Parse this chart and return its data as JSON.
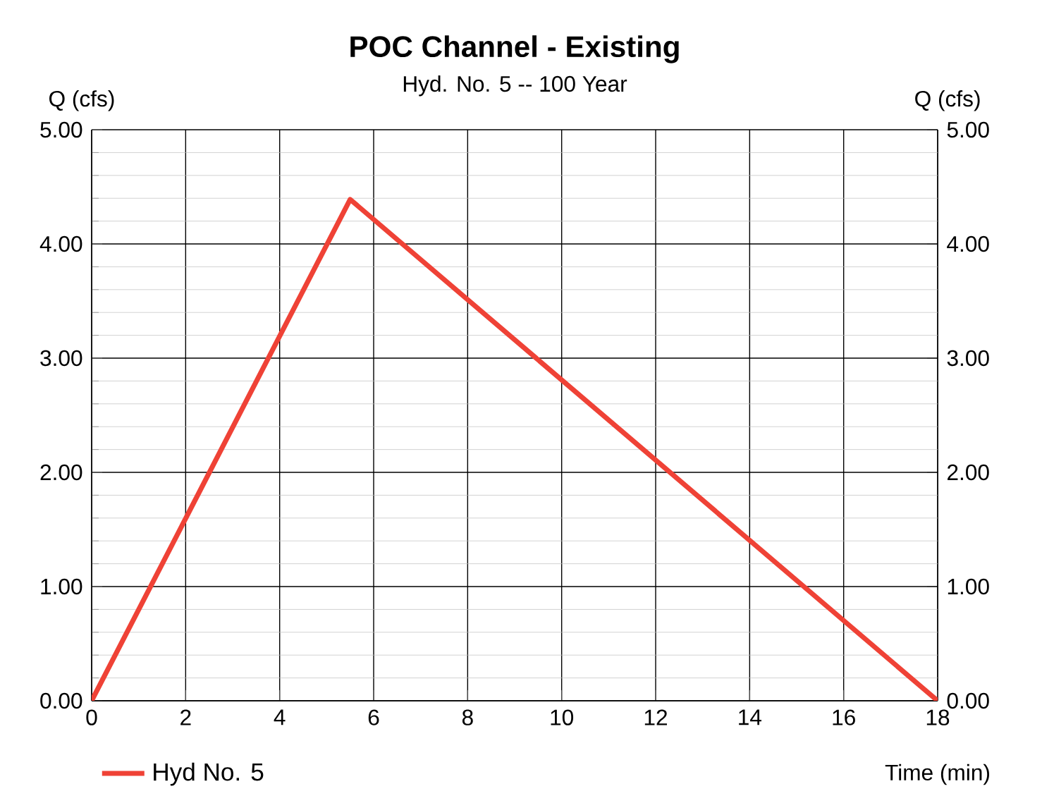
{
  "chart_data": {
    "type": "line",
    "title": "POC Channel - Existing",
    "subtitle": "Hyd. No. 5 -- 100 Year",
    "xlabel": "Time (min)",
    "ylabel": "Q (cfs)",
    "y2label": "Q (cfs)",
    "x": [
      0,
      5.5,
      18
    ],
    "series": [
      {
        "name": "Hyd No. 5",
        "color": "#ef4236",
        "values": [
          0,
          4.39,
          0
        ]
      }
    ],
    "xlim": [
      0,
      18
    ],
    "xticks": [
      0,
      2,
      4,
      6,
      8,
      10,
      12,
      14,
      16,
      18
    ],
    "ylim": [
      0,
      5
    ],
    "yticks": [
      {
        "value": 0,
        "label": "0.00"
      },
      {
        "value": 1,
        "label": "1.00"
      },
      {
        "value": 2,
        "label": "2.00"
      },
      {
        "value": 3,
        "label": "3.00"
      },
      {
        "value": 4,
        "label": "4.00"
      },
      {
        "value": 5,
        "label": "5.00"
      }
    ],
    "y2lim": [
      0,
      5
    ],
    "y2ticks": [
      {
        "value": 0,
        "label": "0.00"
      },
      {
        "value": 1,
        "label": "1.00"
      },
      {
        "value": 2,
        "label": "2.00"
      },
      {
        "value": 3,
        "label": "3.00"
      },
      {
        "value": 4,
        "label": "4.00"
      },
      {
        "value": 5,
        "label": "5.00"
      }
    ],
    "grid": true,
    "legend": "bottom left",
    "marker": "none",
    "line_style": "solid"
  }
}
